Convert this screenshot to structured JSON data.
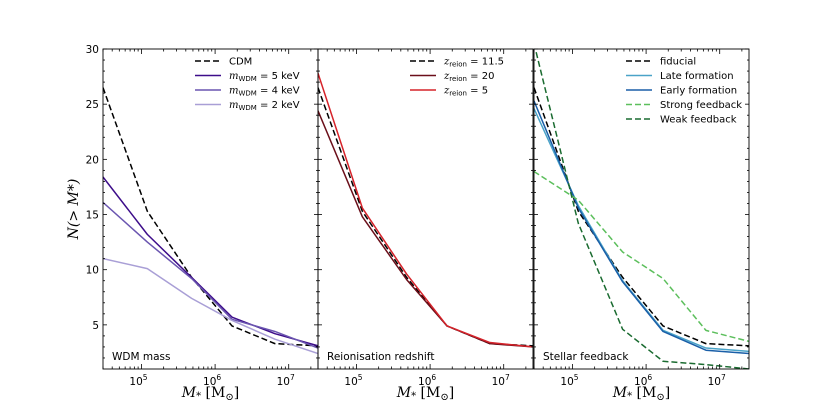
{
  "chart_data": {
    "type": "line",
    "ylabel": "N(> M*)",
    "ylim": [
      1,
      30
    ],
    "xscale": "log",
    "xlim": [
      30000,
      25000000
    ],
    "yticks": [
      "5",
      "10",
      "15",
      "20",
      "25",
      "30"
    ],
    "xtick_labels": [
      "10",
      "10",
      "10"
    ],
    "xtick_exponents": [
      "5",
      "6",
      "7"
    ],
    "xlabel_main": "M",
    "xlabel_sub": "*",
    "xlabel_unit_open": " [M",
    "xlabel_unit_sub": "⊙",
    "xlabel_unit_close": "]",
    "panels": [
      {
        "label": "WDM mass",
        "series": [
          {
            "name": "CDM",
            "color": "#000000",
            "dashed": true,
            "x": [
              30000,
              120000,
              480000,
              1700000,
              6500000,
              25000000
            ],
            "y": [
              26.5,
              15.3,
              9.3,
              4.9,
              3.3,
              3.1
            ]
          },
          {
            "name": "mWDM = 5 keV",
            "color": "#3d0d8a",
            "dashed": false,
            "x": [
              30000,
              120000,
              480000,
              1700000,
              6500000,
              25000000
            ],
            "y": [
              18.4,
              13.2,
              9.3,
              5.7,
              4.2,
              3.1
            ]
          },
          {
            "name": "mWDM = 4 keV",
            "color": "#6a55b0",
            "dashed": false,
            "x": [
              30000,
              120000,
              480000,
              1700000,
              6500000,
              25000000
            ],
            "y": [
              16.1,
              12.5,
              9.2,
              5.5,
              4.4,
              2.9
            ]
          },
          {
            "name": "mWDM = 2 keV",
            "color": "#a99fd6",
            "dashed": false,
            "x": [
              30000,
              120000,
              480000,
              1700000,
              6500000,
              25000000
            ],
            "y": [
              11.0,
              10.1,
              7.4,
              5.4,
              3.7,
              2.4
            ]
          }
        ],
        "legend": [
          {
            "type": "plain",
            "text": "CDM"
          },
          {
            "type": "math",
            "sym": "m",
            "sub": "WDM",
            "rest": " = 5 keV"
          },
          {
            "type": "math",
            "sym": "m",
            "sub": "WDM",
            "rest": " = 4 keV"
          },
          {
            "type": "math",
            "sym": "m",
            "sub": "WDM",
            "rest": " = 2 keV"
          }
        ]
      },
      {
        "label": "Reionisation redshift",
        "series": [
          {
            "name": "zreion = 11.5",
            "color": "#000000",
            "dashed": true,
            "x": [
              30000,
              120000,
              480000,
              1700000,
              6500000,
              25000000
            ],
            "y": [
              26.5,
              15.3,
              9.3,
              4.9,
              3.3,
              3.1
            ]
          },
          {
            "name": "zreion = 20",
            "color": "#6b0f1a",
            "dashed": false,
            "x": [
              30000,
              120000,
              480000,
              1700000,
              6500000,
              25000000
            ],
            "y": [
              24.4,
              14.8,
              9.1,
              4.9,
              3.3,
              3.0
            ]
          },
          {
            "name": "zreion = 5",
            "color": "#d6232a",
            "dashed": false,
            "x": [
              30000,
              120000,
              480000,
              1700000,
              6500000,
              25000000
            ],
            "y": [
              27.8,
              15.6,
              9.6,
              4.9,
              3.4,
              3.0
            ]
          }
        ],
        "legend": [
          {
            "type": "math",
            "sym": "z",
            "sub": "reion",
            "rest": " = 11.5"
          },
          {
            "type": "math",
            "sym": "z",
            "sub": "reion",
            "rest": " = 20"
          },
          {
            "type": "math",
            "sym": "z",
            "sub": "reion",
            "rest": " = 5"
          }
        ]
      },
      {
        "label": "Stellar feedback",
        "series": [
          {
            "name": "fiducial",
            "color": "#000000",
            "dashed": true,
            "x": [
              30000,
              120000,
              480000,
              1700000,
              6500000,
              25000000
            ],
            "y": [
              26.5,
              15.3,
              9.3,
              4.9,
              3.3,
              3.1
            ]
          },
          {
            "name": "Late formation",
            "color": "#4aa3c8",
            "dashed": false,
            "x": [
              30000,
              120000,
              480000,
              1700000,
              6500000,
              25000000
            ],
            "y": [
              24.6,
              15.8,
              9.0,
              4.5,
              2.9,
              2.6
            ]
          },
          {
            "name": "Early formation",
            "color": "#1a5fa8",
            "dashed": false,
            "x": [
              30000,
              120000,
              480000,
              1700000,
              6500000,
              25000000
            ],
            "y": [
              25.3,
              15.6,
              8.9,
              4.4,
              2.7,
              2.4
            ]
          },
          {
            "name": "Strong feedback",
            "color": "#5cbf5c",
            "dashed": true,
            "x": [
              30000,
              120000,
              480000,
              1700000,
              6500000,
              25000000
            ],
            "y": [
              18.9,
              16.3,
              11.6,
              9.2,
              4.5,
              3.5
            ]
          },
          {
            "name": "Weak feedback",
            "color": "#1a6b30",
            "dashed": true,
            "x": [
              30000,
              120000,
              480000,
              1700000,
              6500000,
              25000000
            ],
            "y": [
              30.5,
              14.2,
              4.6,
              1.7,
              1.4,
              1.0
            ]
          }
        ],
        "legend": [
          {
            "type": "plain",
            "text": "fiducial"
          },
          {
            "type": "plain",
            "text": "Late formation"
          },
          {
            "type": "plain",
            "text": "Early formation"
          },
          {
            "type": "plain",
            "text": "Strong feedback"
          },
          {
            "type": "plain",
            "text": "Weak feedback"
          }
        ]
      }
    ]
  }
}
